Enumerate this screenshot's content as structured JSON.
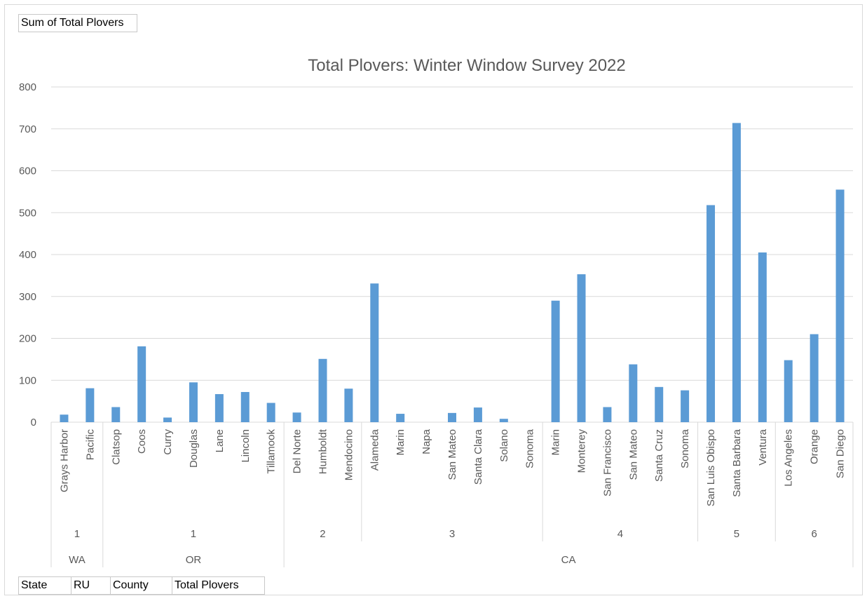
{
  "value_field_button": "Sum of Total Plovers",
  "axis_field_buttons": [
    "State",
    "RU",
    "County",
    "Total Plovers"
  ],
  "colors": {
    "bar": "#5b9bd5",
    "grid": "#d9d9d9",
    "text": "#595959"
  },
  "chart_data": {
    "type": "bar",
    "title": "Total Plovers: Winter Window Survey 2022",
    "xlabel": "",
    "ylabel": "",
    "ylim": [
      0,
      800
    ],
    "yticks": [
      0,
      100,
      200,
      300,
      400,
      500,
      600,
      700,
      800
    ],
    "grid": true,
    "legend": "none",
    "categories": [
      "Grays Harbor",
      "Pacific",
      "Clatsop",
      "Coos",
      "Curry",
      "Douglas",
      "Lane",
      "Lincoln",
      "Tillamook",
      "Del Norte",
      "Humboldt",
      "Mendocino",
      "Alameda",
      "Marin",
      "Napa",
      "San Mateo",
      "Santa Clara",
      "Solano",
      "Sonoma",
      "Marin",
      "Monterey",
      "San Francisco",
      "San Mateo",
      "Santa Cruz",
      "Sonoma",
      "San Luis Obispo",
      "Santa Barbara",
      "Ventura",
      "Los Angeles",
      "Orange",
      "San Diego"
    ],
    "values": [
      18,
      81,
      36,
      181,
      11,
      95,
      67,
      72,
      46,
      23,
      151,
      80,
      331,
      20,
      0,
      22,
      35,
      8,
      0,
      290,
      353,
      36,
      138,
      84,
      76,
      518,
      714,
      405,
      148,
      210,
      555
    ],
    "ru_groups": [
      {
        "label": "1",
        "start": 0,
        "count": 2
      },
      {
        "label": "1",
        "start": 2,
        "count": 7
      },
      {
        "label": "2",
        "start": 9,
        "count": 3
      },
      {
        "label": "3",
        "start": 12,
        "count": 7
      },
      {
        "label": "4",
        "start": 19,
        "count": 6
      },
      {
        "label": "5",
        "start": 25,
        "count": 3
      },
      {
        "label": "6",
        "start": 28,
        "count": 3
      }
    ],
    "state_groups": [
      {
        "label": "WA",
        "start": 0,
        "count": 2
      },
      {
        "label": "OR",
        "start": 2,
        "count": 7
      },
      {
        "label": "CA",
        "start": 9,
        "count": 22
      }
    ]
  }
}
